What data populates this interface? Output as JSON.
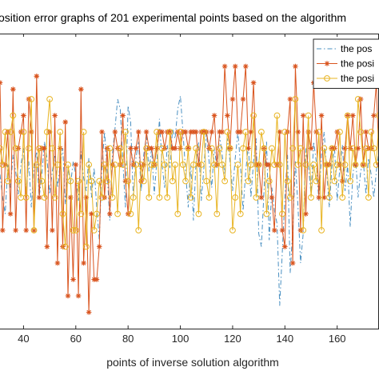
{
  "chart_data": {
    "type": "line",
    "title": "osition error graphs of 201 experimental points based on the algorithm",
    "xlabel": "points of inverse solution algorithm",
    "ylabel": "",
    "xlim": [
      31,
      176
    ],
    "ylim": [
      -4.5,
      4.5
    ],
    "xticks": [
      40,
      60,
      80,
      100,
      120,
      140,
      160
    ],
    "grid": false,
    "legend": {
      "placement": "top-right",
      "entries": [
        "the  pos",
        "the posi",
        "the posi"
      ]
    },
    "series": [
      {
        "name": "the  pos",
        "color": "#4a90c2",
        "line_style": "dash-dot",
        "marker": "none",
        "x": [
          31,
          32,
          33,
          34,
          35,
          36,
          37,
          38,
          39,
          40,
          41,
          42,
          43,
          44,
          45,
          46,
          47,
          48,
          49,
          50,
          51,
          52,
          53,
          54,
          55,
          56,
          57,
          58,
          59,
          60,
          61,
          62,
          63,
          64,
          65,
          66,
          67,
          68,
          69,
          70,
          71,
          72,
          73,
          74,
          75,
          76,
          77,
          78,
          79,
          80,
          81,
          82,
          83,
          84,
          85,
          86,
          87,
          88,
          89,
          90,
          91,
          92,
          93,
          94,
          95,
          96,
          97,
          98,
          99,
          100,
          101,
          102,
          103,
          104,
          105,
          106,
          107,
          108,
          109,
          110,
          111,
          112,
          113,
          114,
          115,
          116,
          117,
          118,
          119,
          120,
          121,
          122,
          123,
          124,
          125,
          126,
          127,
          128,
          129,
          130,
          131,
          132,
          133,
          134,
          135,
          136,
          137,
          138,
          139,
          140,
          141,
          142,
          143,
          144,
          145,
          146,
          147,
          148,
          149,
          150,
          151,
          152,
          153,
          154,
          155,
          156,
          157,
          158,
          159,
          160,
          161,
          162,
          163,
          164,
          165,
          166,
          167,
          168,
          169,
          170,
          171,
          172,
          173,
          174,
          175,
          176
        ],
        "values": [
          0.2,
          -0.5,
          -1.0,
          0.5,
          -0.2,
          0.8,
          0.3,
          -0.4,
          0.5,
          1.0,
          -0.3,
          0.6,
          -0.8,
          0.4,
          0.9,
          -0.5,
          0.2,
          1.2,
          0.7,
          -0.4,
          0.3,
          0.8,
          -0.2,
          0.5,
          1.0,
          -0.7,
          0.4,
          -0.1,
          0.6,
          0.2,
          -0.6,
          0.9,
          0.1,
          -0.3,
          0.7,
          -0.5,
          0.4,
          -0.8,
          -1.8,
          0.5,
          1.5,
          0.3,
          -1.2,
          0.8,
          1.6,
          2.5,
          2.2,
          0.6,
          -0.8,
          2.3,
          1.8,
          -0.5,
          0.7,
          1.2,
          -0.3,
          0.8,
          1.4,
          0.3,
          1.0,
          -0.4,
          0.6,
          1.9,
          0.5,
          -0.2,
          1.1,
          0.4,
          1.6,
          1.3,
          2.2,
          2.6,
          1.5,
          0.3,
          -0.8,
          0.5,
          -1.2,
          0.6,
          1.2,
          -0.6,
          0.4,
          1.5,
          0.6,
          -0.2,
          1.0,
          0.4,
          1.4,
          0.8,
          0.2,
          1.3,
          0.6,
          -0.3,
          0.7,
          1.5,
          0.5,
          -0.9,
          0.3,
          1.1,
          -0.5,
          0.6,
          1.3,
          -1.6,
          -2.0,
          -0.3,
          1.2,
          -1.8,
          -0.2,
          -0.9,
          -1.3,
          -3.8,
          -2.2,
          -0.5,
          0.8,
          -2.8,
          -1.5,
          0.6,
          -0.8,
          -2.5,
          -1.6,
          1.0,
          0.5,
          -0.4,
          1.2,
          0.6,
          -0.6,
          0.8,
          1.5,
          0.3,
          -0.8,
          0.5,
          1.0,
          -0.6,
          0.4,
          1.1,
          -0.3,
          0.5,
          -1.4,
          0.2,
          0.8,
          -0.5,
          0.3,
          0.6,
          -0.4,
          0.7,
          0.2,
          -0.5,
          0.3,
          0.9
        ]
      },
      {
        "name": "the posi",
        "color": "#d9541e",
        "line_style": "solid",
        "marker": "asterisk",
        "x": [
          31,
          32,
          33,
          34,
          35,
          36,
          37,
          38,
          39,
          40,
          41,
          42,
          43,
          44,
          45,
          46,
          47,
          48,
          49,
          50,
          51,
          52,
          53,
          54,
          55,
          56,
          57,
          58,
          59,
          60,
          61,
          62,
          63,
          64,
          65,
          66,
          67,
          68,
          69,
          70,
          71,
          72,
          73,
          74,
          75,
          76,
          77,
          78,
          79,
          80,
          81,
          82,
          83,
          84,
          85,
          86,
          87,
          88,
          89,
          90,
          91,
          92,
          93,
          94,
          95,
          96,
          97,
          98,
          99,
          100,
          101,
          102,
          103,
          104,
          105,
          106,
          107,
          108,
          109,
          110,
          111,
          112,
          113,
          114,
          115,
          116,
          117,
          118,
          119,
          120,
          121,
          122,
          123,
          124,
          125,
          126,
          127,
          128,
          129,
          130,
          131,
          132,
          133,
          134,
          135,
          136,
          137,
          138,
          139,
          140,
          141,
          142,
          143,
          144,
          145,
          146,
          147,
          148,
          149,
          150,
          151,
          152,
          153,
          154,
          155,
          156,
          157,
          158,
          159,
          160,
          161,
          162,
          163,
          164,
          165,
          166,
          167,
          168,
          169,
          170,
          171,
          172,
          173,
          174,
          175,
          176
        ],
        "values": [
          3.0,
          -1.5,
          0.5,
          1.5,
          -1.0,
          2.8,
          -1.5,
          1.0,
          1.5,
          2.0,
          -1.5,
          2.5,
          1.5,
          -1.5,
          3.2,
          -0.5,
          1.0,
          1.0,
          -2.0,
          1.5,
          -1.5,
          2.0,
          -2.5,
          1.0,
          -2.0,
          1.8,
          -3.5,
          -0.5,
          -3.0,
          0.5,
          -3.5,
          2.8,
          -2.5,
          -0.5,
          -4.0,
          -1.0,
          -3.0,
          -3.0,
          -2.0,
          1.5,
          -0.5,
          1.0,
          -1.0,
          0.5,
          1.5,
          1.0,
          0.5,
          2.0,
          0.0,
          -1.0,
          1.0,
          0.5,
          1.0,
          1.5,
          0.0,
          0.5,
          1.5,
          1.0,
          1.0,
          0.5,
          1.0,
          1.5,
          1.5,
          1.0,
          1.5,
          1.5,
          1.0,
          1.0,
          1.5,
          1.0,
          1.5,
          1.5,
          1.0,
          1.5,
          1.5,
          1.5,
          0.5,
          1.5,
          1.5,
          1.5,
          1.0,
          1.5,
          2.0,
          0.5,
          1.5,
          1.5,
          3.5,
          2.0,
          1.0,
          2.5,
          3.5,
          1.5,
          1.5,
          2.5,
          3.5,
          1.0,
          1.5,
          3.0,
          0.5,
          0.5,
          -0.5,
          1.0,
          0.5,
          0.5,
          -0.5,
          -1.5,
          0.5,
          1.5,
          -1.5,
          -2.0,
          1.5,
          2.5,
          -2.5,
          3.5,
          1.5,
          -1.5,
          2.0,
          -1.0,
          1.5,
          1.0,
          3.0,
          1.5,
          -0.5,
          2.0,
          -0.5,
          0.5,
          0.5,
          1.0,
          1.0,
          1.5,
          0.5,
          0.0,
          1.0,
          2.0,
          1.0,
          2.0,
          0.5,
          1.0,
          2.5,
          0.5,
          1.5,
          1.0,
          1.0,
          2.0,
          3.0,
          0.5
        ]
      },
      {
        "name": "the posi",
        "color": "#e8b423",
        "line_style": "solid",
        "marker": "circle",
        "x": [
          31,
          32,
          33,
          34,
          35,
          36,
          37,
          38,
          39,
          40,
          41,
          42,
          43,
          44,
          45,
          46,
          47,
          48,
          49,
          50,
          51,
          52,
          53,
          54,
          55,
          56,
          57,
          58,
          59,
          60,
          61,
          62,
          63,
          64,
          65,
          66,
          67,
          68,
          69,
          70,
          71,
          72,
          73,
          74,
          75,
          76,
          77,
          78,
          79,
          80,
          81,
          82,
          83,
          84,
          85,
          86,
          87,
          88,
          89,
          90,
          91,
          92,
          93,
          94,
          95,
          96,
          97,
          98,
          99,
          100,
          101,
          102,
          103,
          104,
          105,
          106,
          107,
          108,
          109,
          110,
          111,
          112,
          113,
          114,
          115,
          116,
          117,
          118,
          119,
          120,
          121,
          122,
          123,
          124,
          125,
          126,
          127,
          128,
          129,
          130,
          131,
          132,
          133,
          134,
          135,
          136,
          137,
          138,
          139,
          140,
          141,
          142,
          143,
          144,
          145,
          146,
          147,
          148,
          149,
          150,
          151,
          152,
          153,
          154,
          155,
          156,
          157,
          158,
          159,
          160,
          161,
          162,
          163,
          164,
          165,
          166,
          167,
          168,
          169,
          170,
          171,
          172,
          173,
          174,
          175,
          176
        ],
        "values": [
          1.0,
          0.5,
          1.5,
          0.0,
          1.5,
          2.0,
          1.0,
          0.0,
          -0.5,
          1.5,
          -0.5,
          1.0,
          2.5,
          -1.5,
          0.5,
          1.0,
          0.0,
          -0.5,
          1.5,
          2.5,
          1.0,
          -0.5,
          0.5,
          1.5,
          -1.0,
          -2.0,
          0.5,
          0.0,
          -1.5,
          -1.5,
          0.0,
          -1.0,
          1.5,
          -2.0,
          0.5,
          0.0,
          -1.5,
          -1.0,
          0.0,
          -0.5,
          0.5,
          0.0,
          1.0,
          -0.5,
          0.5,
          -1.0,
          1.0,
          0.5,
          1.5,
          0.0,
          -1.0,
          -0.5,
          0.5,
          -1.5,
          0.5,
          0.0,
          1.0,
          -0.5,
          0.5,
          0.5,
          1.5,
          -0.5,
          1.0,
          0.5,
          -0.5,
          1.5,
          0.0,
          0.5,
          -1.0,
          1.5,
          0.5,
          0.0,
          1.0,
          -0.5,
          0.5,
          1.0,
          -1.0,
          0.5,
          1.5,
          0.0,
          -0.5,
          1.0,
          0.5,
          -1.0,
          1.0,
          0.5,
          0.0,
          1.5,
          1.0,
          -1.5,
          -0.5,
          0.5,
          -1.0,
          1.0,
          1.5,
          0.0,
          0.5,
          2.0,
          -0.5,
          0.5,
          1.5,
          1.0,
          -1.0,
          0.0,
          1.0,
          0.5,
          2.0,
          0.5,
          -1.0,
          1.5,
          0.0,
          -0.5,
          1.0,
          2.5,
          0.5,
          1.0,
          -1.5,
          0.5,
          2.0,
          -0.5,
          0.5,
          0.0,
          1.5,
          -1.5,
          1.0,
          0.5,
          -0.5,
          1.0,
          0.0,
          0.5,
          1.5,
          -0.5,
          0.5,
          2.0,
          0.0,
          1.0,
          0.5,
          2.5,
          1.5,
          0.5,
          1.0,
          -0.5,
          1.5,
          1.0,
          0.5,
          2.0
        ]
      }
    ]
  }
}
